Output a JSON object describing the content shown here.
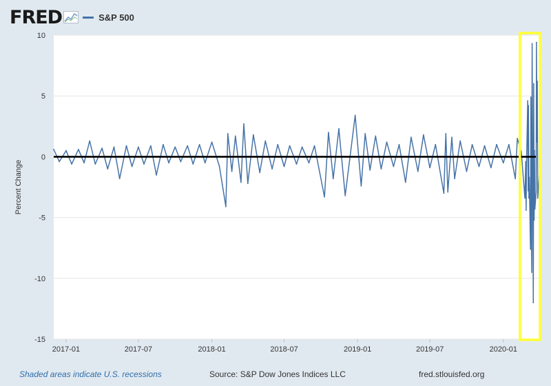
{
  "header": {
    "brand": "FRED",
    "brand_icon": "line-chart-icon"
  },
  "chart_data": {
    "type": "line",
    "title": "",
    "xlabel": "",
    "ylabel": "Percent Change",
    "ylim": [
      -15,
      10
    ],
    "yticks": [
      10,
      5,
      0,
      -5,
      -10,
      -15
    ],
    "xtick_labels": [
      "2017-01",
      "2017-07",
      "2018-01",
      "2018-07",
      "2019-01",
      "2019-07",
      "2020-01"
    ],
    "x_start": "2016-12-01",
    "x_end": "2020-03-31",
    "grid": "horizontal",
    "legend_position": "top-left",
    "reference_line": {
      "y": 0,
      "color": "#000000"
    },
    "highlight": {
      "x_from": "2020-02-20",
      "x_to": "2020-03-31",
      "color": "#ffff33"
    },
    "series": [
      {
        "name": "S&P 500",
        "color": "#4572a7",
        "points": [
          [
            "2016-12-01",
            0.6
          ],
          [
            "2016-12-15",
            -0.4
          ],
          [
            "2017-01-01",
            0.5
          ],
          [
            "2017-01-15",
            -0.6
          ],
          [
            "2017-02-01",
            0.6
          ],
          [
            "2017-02-15",
            -0.5
          ],
          [
            "2017-03-01",
            1.3
          ],
          [
            "2017-03-15",
            -0.6
          ],
          [
            "2017-04-01",
            0.7
          ],
          [
            "2017-04-15",
            -1.0
          ],
          [
            "2017-05-01",
            0.8
          ],
          [
            "2017-05-15",
            -1.8
          ],
          [
            "2017-06-01",
            0.9
          ],
          [
            "2017-06-15",
            -0.8
          ],
          [
            "2017-07-01",
            0.8
          ],
          [
            "2017-07-15",
            -0.6
          ],
          [
            "2017-08-01",
            0.9
          ],
          [
            "2017-08-15",
            -1.5
          ],
          [
            "2017-09-01",
            1.0
          ],
          [
            "2017-09-15",
            -0.5
          ],
          [
            "2017-10-01",
            0.8
          ],
          [
            "2017-10-15",
            -0.4
          ],
          [
            "2017-11-01",
            0.9
          ],
          [
            "2017-11-15",
            -0.6
          ],
          [
            "2017-12-01",
            1.0
          ],
          [
            "2017-12-15",
            -0.5
          ],
          [
            "2018-01-01",
            1.2
          ],
          [
            "2018-01-20",
            -0.8
          ],
          [
            "2018-02-05",
            -4.1
          ],
          [
            "2018-02-10",
            1.9
          ],
          [
            "2018-02-20",
            -1.2
          ],
          [
            "2018-03-01",
            1.7
          ],
          [
            "2018-03-15",
            -2.1
          ],
          [
            "2018-03-22",
            2.7
          ],
          [
            "2018-04-01",
            -2.2
          ],
          [
            "2018-04-15",
            1.8
          ],
          [
            "2018-05-01",
            -1.3
          ],
          [
            "2018-05-15",
            1.3
          ],
          [
            "2018-06-01",
            -1.0
          ],
          [
            "2018-06-15",
            1.0
          ],
          [
            "2018-07-01",
            -0.8
          ],
          [
            "2018-07-15",
            0.9
          ],
          [
            "2018-08-01",
            -0.6
          ],
          [
            "2018-08-15",
            0.8
          ],
          [
            "2018-09-01",
            -0.5
          ],
          [
            "2018-09-15",
            0.9
          ],
          [
            "2018-10-10",
            -3.3
          ],
          [
            "2018-10-20",
            2.0
          ],
          [
            "2018-11-01",
            -1.8
          ],
          [
            "2018-11-15",
            2.3
          ],
          [
            "2018-12-01",
            -3.2
          ],
          [
            "2018-12-26",
            3.4
          ],
          [
            "2019-01-10",
            -2.4
          ],
          [
            "2019-01-20",
            1.9
          ],
          [
            "2019-02-01",
            -1.1
          ],
          [
            "2019-02-15",
            1.7
          ],
          [
            "2019-03-01",
            -1.0
          ],
          [
            "2019-03-15",
            1.2
          ],
          [
            "2019-04-01",
            -0.8
          ],
          [
            "2019-04-15",
            1.0
          ],
          [
            "2019-05-01",
            -2.1
          ],
          [
            "2019-05-15",
            1.6
          ],
          [
            "2019-06-01",
            -1.2
          ],
          [
            "2019-06-15",
            1.8
          ],
          [
            "2019-07-01",
            -0.9
          ],
          [
            "2019-07-15",
            1.0
          ],
          [
            "2019-08-05",
            -3.0
          ],
          [
            "2019-08-10",
            1.9
          ],
          [
            "2019-08-15",
            -2.9
          ],
          [
            "2019-08-25",
            1.6
          ],
          [
            "2019-09-01",
            -1.8
          ],
          [
            "2019-09-15",
            1.3
          ],
          [
            "2019-10-01",
            -1.2
          ],
          [
            "2019-10-15",
            1.0
          ],
          [
            "2019-11-01",
            -0.8
          ],
          [
            "2019-11-15",
            0.9
          ],
          [
            "2019-12-01",
            -0.9
          ],
          [
            "2019-12-15",
            1.0
          ],
          [
            "2020-01-01",
            -0.5
          ],
          [
            "2020-01-15",
            1.0
          ],
          [
            "2020-01-31",
            -1.8
          ],
          [
            "2020-02-05",
            1.5
          ],
          [
            "2020-02-15",
            0.4
          ],
          [
            "2020-02-24",
            -3.4
          ],
          [
            "2020-02-26",
            -0.4
          ],
          [
            "2020-02-27",
            -4.4
          ],
          [
            "2020-02-28",
            -0.8
          ],
          [
            "2020-03-02",
            4.6
          ],
          [
            "2020-03-03",
            -2.8
          ],
          [
            "2020-03-04",
            4.2
          ],
          [
            "2020-03-05",
            -3.4
          ],
          [
            "2020-03-06",
            -1.7
          ],
          [
            "2020-03-09",
            -7.6
          ],
          [
            "2020-03-10",
            4.9
          ],
          [
            "2020-03-11",
            -4.9
          ],
          [
            "2020-03-12",
            -9.5
          ],
          [
            "2020-03-13",
            9.3
          ],
          [
            "2020-03-16",
            -12.0
          ],
          [
            "2020-03-17",
            6.0
          ],
          [
            "2020-03-18",
            -5.2
          ],
          [
            "2020-03-19",
            0.5
          ],
          [
            "2020-03-20",
            -4.3
          ],
          [
            "2020-03-23",
            -2.9
          ],
          [
            "2020-03-24",
            9.4
          ],
          [
            "2020-03-25",
            1.2
          ],
          [
            "2020-03-26",
            6.2
          ],
          [
            "2020-03-27",
            -3.4
          ],
          [
            "2020-03-31",
            -1.6
          ]
        ]
      }
    ]
  },
  "footer": {
    "note": "Shaded areas indicate U.S. recessions",
    "source": "Source: S&P Dow Jones Indices LLC",
    "site": "fred.stlouisfed.org"
  }
}
